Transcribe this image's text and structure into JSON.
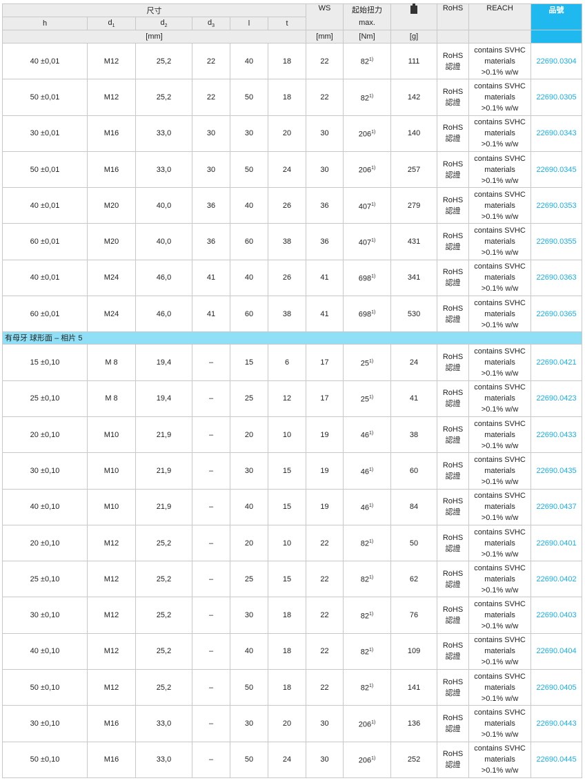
{
  "header": {
    "dimensions": "尺寸",
    "cols": [
      "h",
      "d",
      "d",
      "d",
      "l",
      "t"
    ],
    "subs": [
      "",
      "1",
      "2",
      "3",
      "",
      ""
    ],
    "ws": "WS",
    "torque": "起始扭力",
    "torque2": "max.",
    "weight_icon": "weight-icon",
    "rohs": "RoHS",
    "reach": "REACH",
    "part_no": "品號",
    "unit_mm": "[mm]",
    "unit_ws": "[mm]",
    "unit_nm": "[Nm]",
    "unit_g": "[g]"
  },
  "colors": {
    "part_header": "#1fb8ef",
    "section": "#8fe0f6",
    "link": "#19aee6"
  },
  "rohs_text": [
    "RoHS",
    "認證"
  ],
  "reach_text": [
    "contains SVHC",
    "materials",
    ">0.1% w/w"
  ],
  "footnote": "1)",
  "groups": [
    {
      "title": "",
      "rows": [
        [
          "40 ±0,01",
          "M12",
          "25,2",
          "22",
          "40",
          "18",
          "22",
          "82",
          "111",
          "22690.0304"
        ],
        [
          "50 ±0,01",
          "M12",
          "25,2",
          "22",
          "50",
          "18",
          "22",
          "82",
          "142",
          "22690.0305"
        ],
        [
          "30 ±0,01",
          "M16",
          "33,0",
          "30",
          "30",
          "20",
          "30",
          "206",
          "140",
          "22690.0343"
        ],
        [
          "50 ±0,01",
          "M16",
          "33,0",
          "30",
          "50",
          "24",
          "30",
          "206",
          "257",
          "22690.0345"
        ],
        [
          "40 ±0,01",
          "M20",
          "40,0",
          "36",
          "40",
          "26",
          "36",
          "407",
          "279",
          "22690.0353"
        ],
        [
          "60 ±0,01",
          "M20",
          "40,0",
          "36",
          "60",
          "38",
          "36",
          "407",
          "431",
          "22690.0355"
        ],
        [
          "40 ±0,01",
          "M24",
          "46,0",
          "41",
          "40",
          "26",
          "41",
          "698",
          "341",
          "22690.0363"
        ],
        [
          "60 ±0,01",
          "M24",
          "46,0",
          "41",
          "60",
          "38",
          "41",
          "698",
          "530",
          "22690.0365"
        ]
      ]
    },
    {
      "title": "有母牙 球形面 – 相片 5",
      "rows": [
        [
          "15 ±0,10",
          "M 8",
          "19,4",
          "–",
          "15",
          "6",
          "17",
          "25",
          "24",
          "22690.0421"
        ],
        [
          "25 ±0,10",
          "M 8",
          "19,4",
          "–",
          "25",
          "12",
          "17",
          "25",
          "41",
          "22690.0423"
        ],
        [
          "20 ±0,10",
          "M10",
          "21,9",
          "–",
          "20",
          "10",
          "19",
          "46",
          "38",
          "22690.0433"
        ],
        [
          "30 ±0,10",
          "M10",
          "21,9",
          "–",
          "30",
          "15",
          "19",
          "46",
          "60",
          "22690.0435"
        ],
        [
          "40 ±0,10",
          "M10",
          "21,9",
          "–",
          "40",
          "15",
          "19",
          "46",
          "84",
          "22690.0437"
        ],
        [
          "20 ±0,10",
          "M12",
          "25,2",
          "–",
          "20",
          "10",
          "22",
          "82",
          "50",
          "22690.0401"
        ],
        [
          "25 ±0,10",
          "M12",
          "25,2",
          "–",
          "25",
          "15",
          "22",
          "82",
          "62",
          "22690.0402"
        ],
        [
          "30 ±0,10",
          "M12",
          "25,2",
          "–",
          "30",
          "18",
          "22",
          "82",
          "76",
          "22690.0403"
        ],
        [
          "40 ±0,10",
          "M12",
          "25,2",
          "–",
          "40",
          "18",
          "22",
          "82",
          "109",
          "22690.0404"
        ],
        [
          "50 ±0,10",
          "M12",
          "25,2",
          "–",
          "50",
          "18",
          "22",
          "82",
          "141",
          "22690.0405"
        ],
        [
          "30 ±0,10",
          "M16",
          "33,0",
          "–",
          "30",
          "20",
          "30",
          "206",
          "136",
          "22690.0443"
        ],
        [
          "50 ±0,10",
          "M16",
          "33,0",
          "–",
          "50",
          "24",
          "30",
          "206",
          "252",
          "22690.0445"
        ]
      ]
    }
  ]
}
